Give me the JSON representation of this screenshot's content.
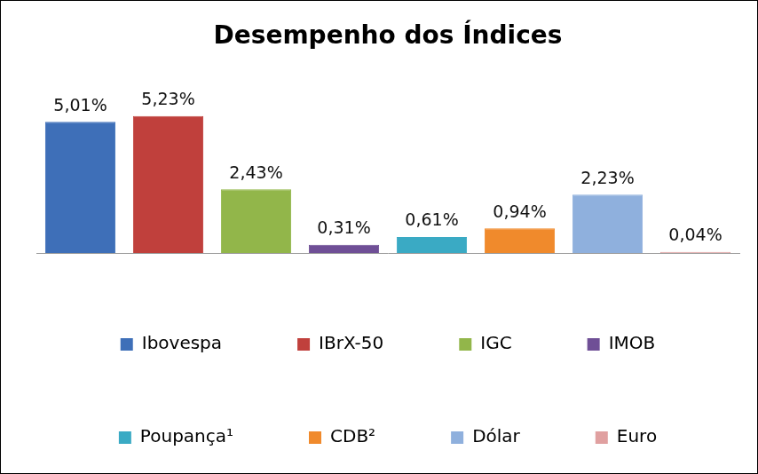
{
  "chart_data": {
    "type": "bar",
    "title": "Desempenho dos Índices",
    "categories": [
      "Ibovespa",
      "IBrX-50",
      "IGC",
      "IMOB",
      "Poupança¹",
      "CDB²",
      "Dólar",
      "Euro"
    ],
    "values": [
      5.01,
      5.23,
      2.43,
      0.31,
      0.61,
      0.94,
      2.23,
      0.04
    ],
    "value_labels": [
      "5,01%",
      "5,23%",
      "2,43%",
      "0,31%",
      "0,61%",
      "0,94%",
      "2,23%",
      "0,04%"
    ],
    "colors": [
      "#3e6fb8",
      "#c0403c",
      "#92b64a",
      "#6f4f96",
      "#3aaac4",
      "#f08a2c",
      "#8fb0dd",
      "#e0a0a0"
    ],
    "data_labels": true,
    "tick_labels": false,
    "grid": false,
    "legend": "bottom"
  }
}
